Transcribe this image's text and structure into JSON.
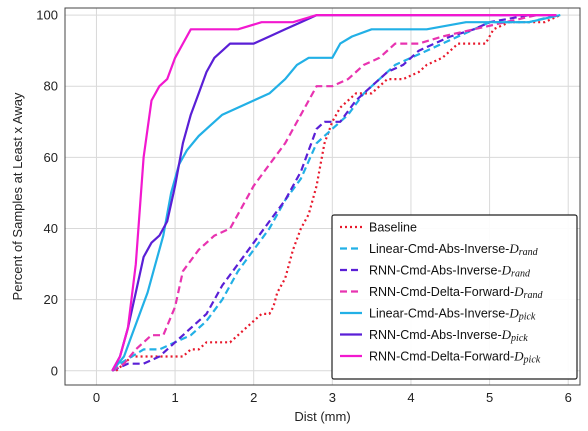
{
  "chart_data": {
    "type": "line",
    "title": "",
    "xlabel": "Dist (mm)",
    "ylabel": "Percent of Samples at Least x Away",
    "xlim": [
      -0.4,
      6.15
    ],
    "ylim": [
      -4,
      102
    ],
    "xticks": [
      0,
      1,
      2,
      3,
      4,
      5,
      6
    ],
    "yticks": [
      0,
      20,
      40,
      60,
      80,
      100
    ],
    "grid": true,
    "legend_position": "bottom-right",
    "series": [
      {
        "name": "Baseline",
        "script": "D",
        "subscript": "",
        "color": "#e8192c",
        "dash": "dotted",
        "points": [
          [
            0.25,
            0
          ],
          [
            0.35,
            2
          ],
          [
            0.45,
            4
          ],
          [
            0.6,
            4
          ],
          [
            0.8,
            4
          ],
          [
            0.9,
            4
          ],
          [
            1.0,
            4
          ],
          [
            1.1,
            4
          ],
          [
            1.2,
            6
          ],
          [
            1.3,
            6
          ],
          [
            1.4,
            8
          ],
          [
            1.6,
            8
          ],
          [
            1.7,
            8
          ],
          [
            1.8,
            10
          ],
          [
            1.9,
            12
          ],
          [
            2.0,
            14
          ],
          [
            2.1,
            16
          ],
          [
            2.2,
            16
          ],
          [
            2.25,
            18
          ],
          [
            2.3,
            22
          ],
          [
            2.4,
            26
          ],
          [
            2.5,
            34
          ],
          [
            2.6,
            40
          ],
          [
            2.7,
            44
          ],
          [
            2.8,
            52
          ],
          [
            2.85,
            58
          ],
          [
            2.9,
            64
          ],
          [
            3.0,
            70
          ],
          [
            3.1,
            74
          ],
          [
            3.2,
            76
          ],
          [
            3.3,
            78
          ],
          [
            3.5,
            78
          ],
          [
            3.6,
            80
          ],
          [
            3.7,
            82
          ],
          [
            3.9,
            82
          ],
          [
            4.1,
            84
          ],
          [
            4.2,
            86
          ],
          [
            4.4,
            88
          ],
          [
            4.6,
            92
          ],
          [
            4.95,
            92
          ],
          [
            5.05,
            96
          ],
          [
            5.25,
            98
          ],
          [
            5.5,
            98
          ],
          [
            5.7,
            98
          ],
          [
            5.9,
            100
          ]
        ]
      },
      {
        "name": "Linear-Cmd-Abs-Inverse-",
        "script": "D",
        "subscript": "rand",
        "color": "#22b0e6",
        "dash": "dashed",
        "points": [
          [
            0.2,
            0
          ],
          [
            0.3,
            2
          ],
          [
            0.45,
            4
          ],
          [
            0.6,
            6
          ],
          [
            0.8,
            6
          ],
          [
            1.0,
            8
          ],
          [
            1.2,
            10
          ],
          [
            1.4,
            14
          ],
          [
            1.6,
            20
          ],
          [
            1.8,
            28
          ],
          [
            2.0,
            34
          ],
          [
            2.2,
            40
          ],
          [
            2.4,
            48
          ],
          [
            2.6,
            54
          ],
          [
            2.8,
            64
          ],
          [
            3.0,
            68
          ],
          [
            3.2,
            72
          ],
          [
            3.4,
            78
          ],
          [
            3.6,
            82
          ],
          [
            3.8,
            86
          ],
          [
            4.0,
            88
          ],
          [
            4.2,
            90
          ],
          [
            4.4,
            92
          ],
          [
            4.6,
            94
          ],
          [
            5.0,
            98
          ],
          [
            5.2,
            98
          ],
          [
            5.5,
            98
          ],
          [
            5.85,
            100
          ]
        ]
      },
      {
        "name": "RNN-Cmd-Abs-Inverse-",
        "script": "D",
        "subscript": "rand",
        "color": "#5a1fd6",
        "dash": "dashed",
        "points": [
          [
            0.2,
            0
          ],
          [
            0.4,
            2
          ],
          [
            0.6,
            2
          ],
          [
            0.8,
            4
          ],
          [
            1.0,
            8
          ],
          [
            1.2,
            12
          ],
          [
            1.4,
            16
          ],
          [
            1.6,
            24
          ],
          [
            1.8,
            30
          ],
          [
            2.0,
            36
          ],
          [
            2.2,
            42
          ],
          [
            2.4,
            48
          ],
          [
            2.6,
            56
          ],
          [
            2.7,
            62
          ],
          [
            2.8,
            68
          ],
          [
            2.9,
            70
          ],
          [
            3.1,
            70
          ],
          [
            3.3,
            76
          ],
          [
            3.5,
            80
          ],
          [
            3.7,
            84
          ],
          [
            3.9,
            86
          ],
          [
            4.1,
            90
          ],
          [
            4.3,
            92
          ],
          [
            4.5,
            94
          ],
          [
            4.8,
            96
          ],
          [
            5.0,
            98
          ],
          [
            5.5,
            100
          ]
        ]
      },
      {
        "name": "RNN-Cmd-Delta-Forward-",
        "script": "D",
        "subscript": "rand",
        "color": "#e833b0",
        "dash": "dashed",
        "points": [
          [
            0.2,
            0
          ],
          [
            0.35,
            2
          ],
          [
            0.5,
            6
          ],
          [
            0.7,
            10
          ],
          [
            0.85,
            10
          ],
          [
            1.0,
            18
          ],
          [
            1.1,
            28
          ],
          [
            1.3,
            34
          ],
          [
            1.5,
            38
          ],
          [
            1.7,
            40
          ],
          [
            1.85,
            46
          ],
          [
            2.0,
            52
          ],
          [
            2.2,
            58
          ],
          [
            2.4,
            64
          ],
          [
            2.6,
            72
          ],
          [
            2.8,
            80
          ],
          [
            3.0,
            80
          ],
          [
            3.2,
            82
          ],
          [
            3.4,
            86
          ],
          [
            3.6,
            88
          ],
          [
            3.8,
            92
          ],
          [
            4.1,
            92
          ],
          [
            4.4,
            94
          ],
          [
            4.8,
            96
          ],
          [
            5.2,
            98
          ],
          [
            5.6,
            100
          ]
        ]
      },
      {
        "name": "Linear-Cmd-Abs-Inverse-",
        "script": "D",
        "subscript": "pick",
        "color": "#22b0e6",
        "dash": "solid",
        "points": [
          [
            0.2,
            0
          ],
          [
            0.35,
            4
          ],
          [
            0.45,
            10
          ],
          [
            0.55,
            16
          ],
          [
            0.65,
            22
          ],
          [
            0.75,
            30
          ],
          [
            0.85,
            38
          ],
          [
            0.95,
            50
          ],
          [
            1.05,
            58
          ],
          [
            1.15,
            62
          ],
          [
            1.3,
            66
          ],
          [
            1.4,
            68
          ],
          [
            1.6,
            72
          ],
          [
            1.8,
            74
          ],
          [
            2.0,
            76
          ],
          [
            2.2,
            78
          ],
          [
            2.4,
            82
          ],
          [
            2.55,
            86
          ],
          [
            2.7,
            88
          ],
          [
            3.0,
            88
          ],
          [
            3.1,
            92
          ],
          [
            3.25,
            94
          ],
          [
            3.5,
            96
          ],
          [
            3.8,
            96
          ],
          [
            4.2,
            96
          ],
          [
            4.7,
            98
          ],
          [
            5.0,
            98
          ],
          [
            5.5,
            98
          ],
          [
            5.9,
            100
          ]
        ]
      },
      {
        "name": "RNN-Cmd-Abs-Inverse-",
        "script": "D",
        "subscript": "pick",
        "color": "#5a1fd6",
        "dash": "solid",
        "points": [
          [
            0.2,
            0
          ],
          [
            0.3,
            4
          ],
          [
            0.4,
            12
          ],
          [
            0.5,
            22
          ],
          [
            0.6,
            32
          ],
          [
            0.7,
            36
          ],
          [
            0.8,
            38
          ],
          [
            0.9,
            42
          ],
          [
            1.0,
            52
          ],
          [
            1.1,
            64
          ],
          [
            1.2,
            72
          ],
          [
            1.3,
            78
          ],
          [
            1.4,
            84
          ],
          [
            1.5,
            88
          ],
          [
            1.6,
            90
          ],
          [
            1.7,
            92
          ],
          [
            1.9,
            92
          ],
          [
            2.0,
            92
          ],
          [
            2.2,
            94
          ],
          [
            2.4,
            96
          ],
          [
            2.6,
            98
          ],
          [
            2.8,
            100
          ],
          [
            3.5,
            100
          ],
          [
            5.85,
            100
          ]
        ]
      },
      {
        "name": "RNN-Cmd-Delta-Forward-",
        "script": "D",
        "subscript": "pick",
        "color": "#f218cf",
        "dash": "solid",
        "points": [
          [
            0.2,
            0
          ],
          [
            0.3,
            4
          ],
          [
            0.4,
            12
          ],
          [
            0.5,
            30
          ],
          [
            0.6,
            60
          ],
          [
            0.7,
            76
          ],
          [
            0.8,
            80
          ],
          [
            0.9,
            82
          ],
          [
            1.0,
            88
          ],
          [
            1.1,
            92
          ],
          [
            1.2,
            96
          ],
          [
            1.3,
            96
          ],
          [
            1.5,
            96
          ],
          [
            1.8,
            96
          ],
          [
            2.1,
            98
          ],
          [
            2.5,
            98
          ],
          [
            2.8,
            100
          ],
          [
            3.2,
            100
          ],
          [
            5.85,
            100
          ]
        ]
      }
    ]
  }
}
